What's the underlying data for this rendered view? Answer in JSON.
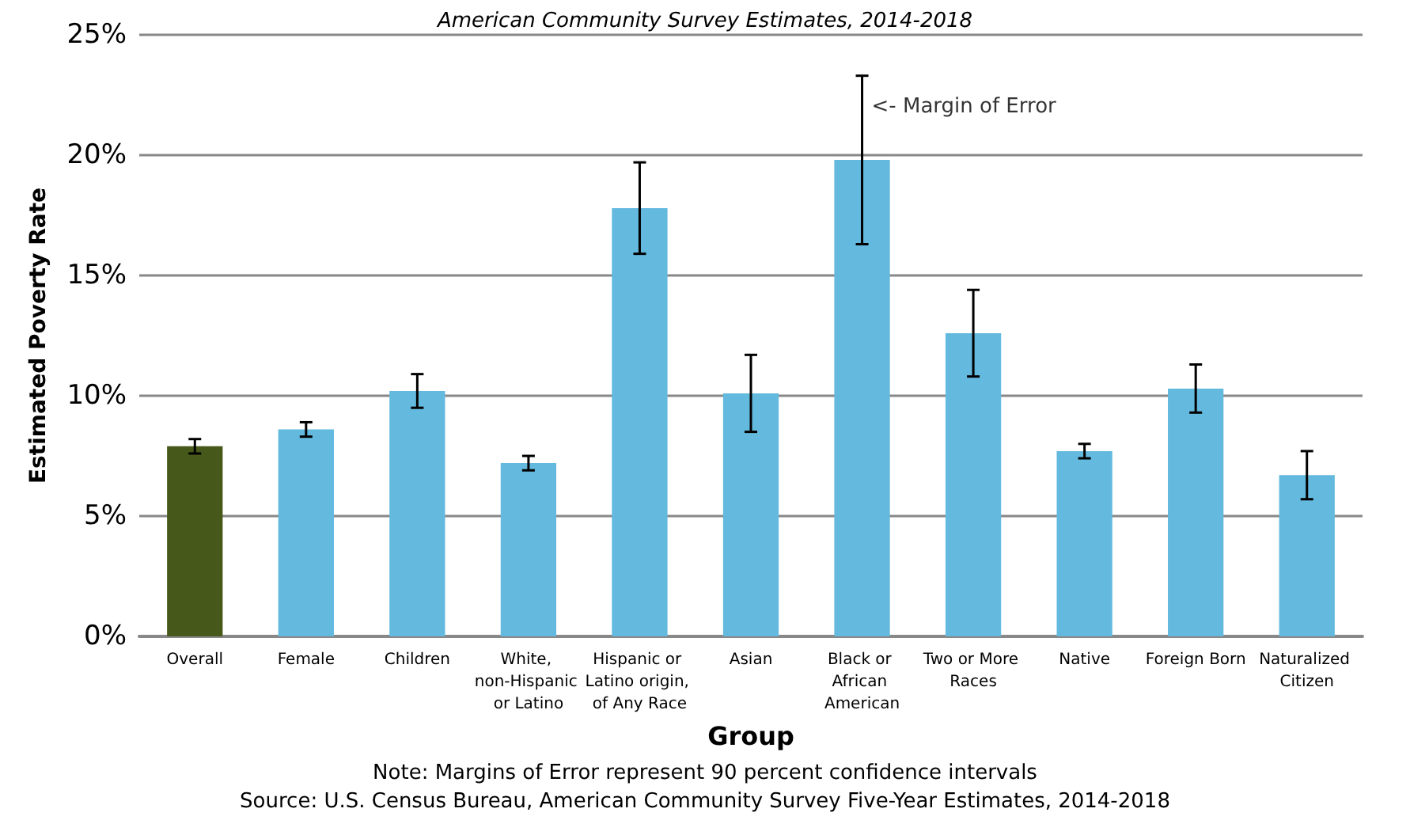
{
  "chart_data": {
    "type": "bar",
    "title": "American Community Survey Estimates, 2014-2018",
    "xlabel": "Group",
    "ylabel": "Estimated Poverty Rate",
    "categories": [
      "Overall",
      "Female",
      "Children",
      "White, non-Hispanic or Latino",
      "Hispanic or Latino origin, of Any Race",
      "Asian",
      "Black or African American",
      "Two or More Races",
      "Native",
      "Foreign Born",
      "Naturalized Citizen"
    ],
    "values": [
      7.9,
      8.6,
      10.2,
      7.2,
      17.8,
      10.1,
      19.8,
      12.6,
      7.7,
      10.3,
      6.7
    ],
    "errors": [
      0.3,
      0.3,
      0.7,
      0.3,
      1.9,
      1.6,
      3.5,
      1.8,
      0.3,
      1.0,
      1.0
    ],
    "colors": [
      "#47591a",
      "#63b9de",
      "#63b9de",
      "#63b9de",
      "#63b9de",
      "#63b9de",
      "#63b9de",
      "#63b9de",
      "#63b9de",
      "#63b9de",
      "#63b9de"
    ],
    "ylim": [
      0,
      25
    ],
    "yticks": [
      {
        "value": 0,
        "label": "0%"
      },
      {
        "value": 5,
        "label": "5%"
      },
      {
        "value": 10,
        "label": "10%"
      },
      {
        "value": 15,
        "label": "15%"
      },
      {
        "value": 20,
        "label": "20%"
      },
      {
        "value": 25,
        "label": "25%"
      }
    ],
    "grid": "y",
    "annotations": [
      {
        "text": "<- Margin of Error",
        "x": "Black or African American",
        "y": 22
      },
      "Note: Margins of Error represent 90 percent confidence intervals",
      "Source: U.S. Census Bureau, American Community Survey Five-Year Estimates, 2014-2018"
    ]
  }
}
